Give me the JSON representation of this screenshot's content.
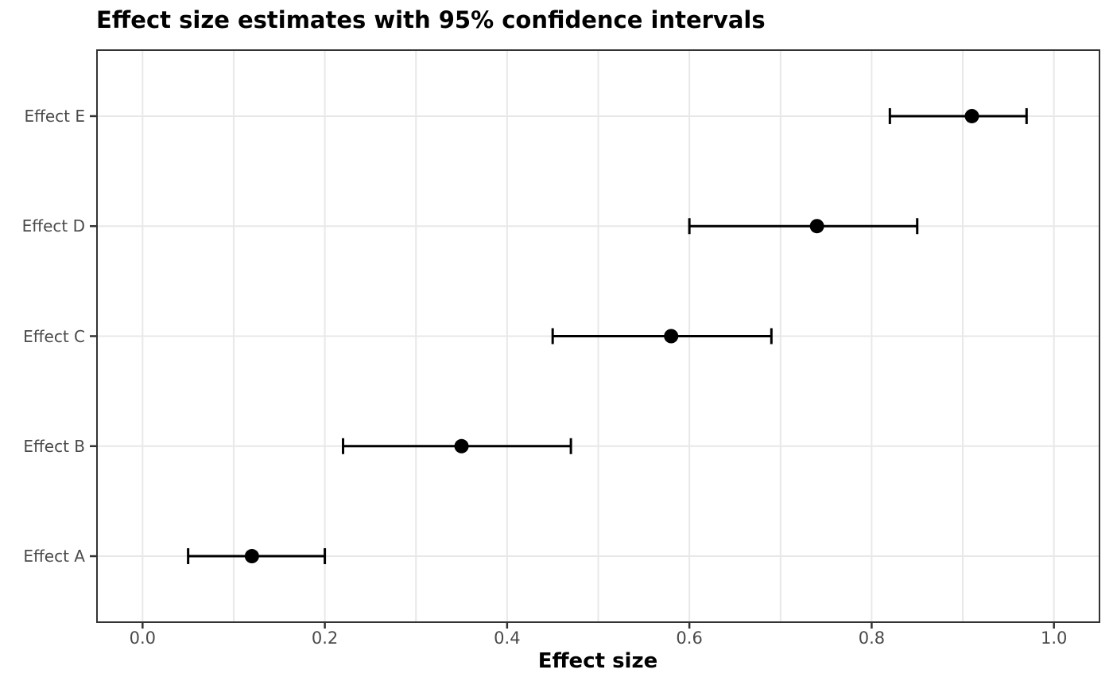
{
  "chart_data": {
    "type": "scatter",
    "subtype": "horizontal-dot-with-errorbars",
    "title": "Effect size estimates with 95% confidence intervals",
    "xlabel": "Effect size",
    "ylabel": "",
    "legend": "none",
    "grid": true,
    "xlim": [
      -0.05,
      1.05
    ],
    "x_major_ticks": [
      0.0,
      0.2,
      0.4,
      0.6,
      0.8,
      1.0
    ],
    "x_major_tick_labels": [
      "0.0",
      "0.2",
      "0.4",
      "0.6",
      "0.8",
      "1.0"
    ],
    "x_gridlines": [
      0.0,
      0.1,
      0.2,
      0.3,
      0.4,
      0.5,
      0.6,
      0.7,
      0.8,
      0.9,
      1.0
    ],
    "categories_top_to_bottom": [
      "Effect E",
      "Effect D",
      "Effect C",
      "Effect B",
      "Effect A"
    ],
    "points": [
      {
        "label": "Effect E",
        "estimate": 0.91,
        "ci_low": 0.82,
        "ci_high": 0.97
      },
      {
        "label": "Effect D",
        "estimate": 0.74,
        "ci_low": 0.6,
        "ci_high": 0.85
      },
      {
        "label": "Effect C",
        "estimate": 0.58,
        "ci_low": 0.45,
        "ci_high": 0.69
      },
      {
        "label": "Effect B",
        "estimate": 0.35,
        "ci_low": 0.22,
        "ci_high": 0.47
      },
      {
        "label": "Effect A",
        "estimate": 0.12,
        "ci_low": 0.05,
        "ci_high": 0.2
      }
    ],
    "colors": {
      "marker": "#000000",
      "errorbar": "#000000",
      "gridline": "#e8e8e8",
      "panel_border": "#333333",
      "tick_mark": "#333333",
      "tick_label": "#4a4a4a",
      "title": "#000000",
      "axis_title": "#000000",
      "background": "#ffffff"
    }
  }
}
